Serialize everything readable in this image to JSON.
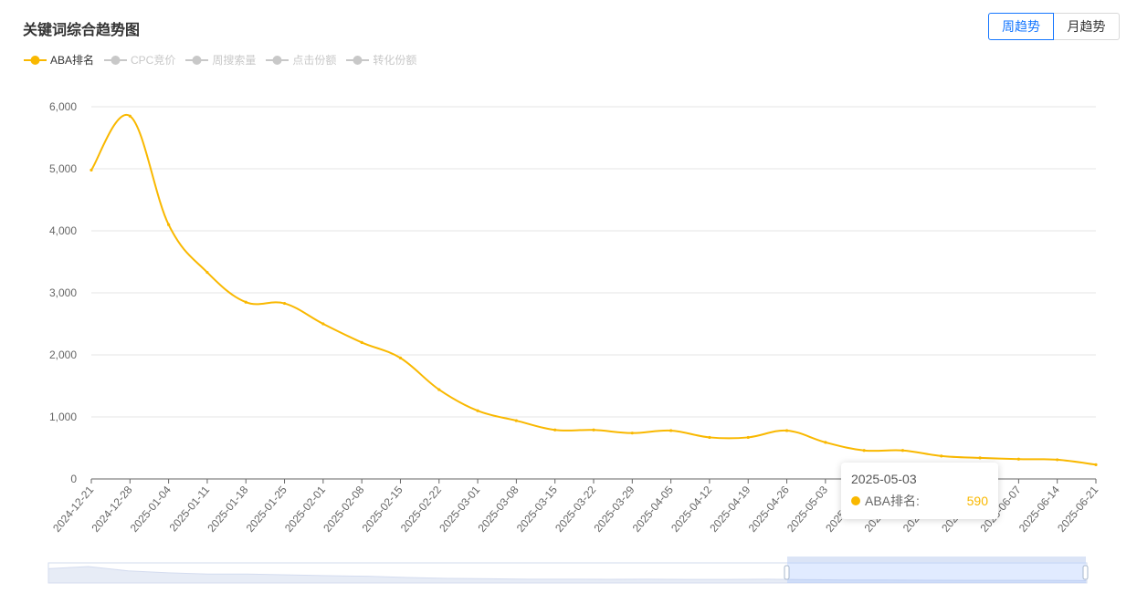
{
  "title": "关键词综合趋势图",
  "toggle": {
    "week": "周趋势",
    "month": "月趋势",
    "active": "week"
  },
  "legend": [
    {
      "name": "ABA排名",
      "active": true,
      "color": "#f9b800"
    },
    {
      "name": "CPC竞价",
      "active": false,
      "color": "#c8c8c8"
    },
    {
      "name": "周搜索量",
      "active": false,
      "color": "#c8c8c8"
    },
    {
      "name": "点击份额",
      "active": false,
      "color": "#c8c8c8"
    },
    {
      "name": "转化份额",
      "active": false,
      "color": "#c8c8c8"
    }
  ],
  "tooltip": {
    "date": "2025-05-03",
    "series": "ABA排名:",
    "value": "590"
  },
  "chart_data": {
    "type": "line",
    "ylim": [
      0,
      6000
    ],
    "yticks": [
      "0",
      "1,000",
      "2,000",
      "3,000",
      "4,000",
      "5,000",
      "6,000"
    ],
    "grid": true,
    "legend_position": "top-left",
    "x": [
      "2024-12-21",
      "2024-12-28",
      "2025-01-04",
      "2025-01-11",
      "2025-01-18",
      "2025-01-25",
      "2025-02-01",
      "2025-02-08",
      "2025-02-15",
      "2025-02-22",
      "2025-03-01",
      "2025-03-08",
      "2025-03-15",
      "2025-03-22",
      "2025-03-29",
      "2025-04-05",
      "2025-04-12",
      "2025-04-19",
      "2025-04-26",
      "2025-05-03",
      "2025-05-10",
      "2025-05-17",
      "2025-05-24",
      "2025-05-31",
      "2025-06-07",
      "2025-06-14",
      "2025-06-21"
    ],
    "series": [
      {
        "name": "ABA排名",
        "color": "#f9b800",
        "values": [
          4980,
          5850,
          4100,
          3330,
          2850,
          2830,
          2500,
          2200,
          1950,
          1440,
          1100,
          940,
          790,
          790,
          740,
          780,
          670,
          670,
          780,
          590,
          460,
          460,
          370,
          340,
          320,
          310,
          230
        ]
      }
    ]
  }
}
